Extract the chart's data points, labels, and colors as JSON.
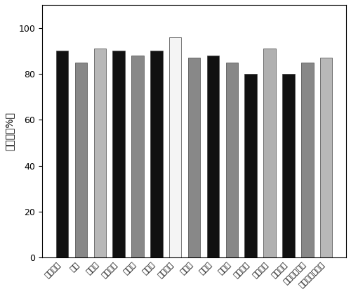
{
  "categories": [
    "卡马西平",
    "雌酮",
    "王基酮",
    "阿司匹林",
    "氯霉素",
    "青霉素",
    "双氯酚酸",
    "泰青生",
    "布洛芬",
    "三氯生",
    "环丙沙星",
    "氨氟沙星",
    "诺氟沙星",
    "磺胺甲基噇座",
    "磺胺二甲基噇座"
  ],
  "values": [
    90,
    85,
    91,
    90,
    88,
    90,
    96,
    87,
    88,
    85,
    80,
    91,
    80,
    85,
    87
  ],
  "colors": [
    "#111111",
    "#888888",
    "#b8b8b8",
    "#111111",
    "#888888",
    "#111111",
    "#f4f4f4",
    "#888888",
    "#111111",
    "#888888",
    "#111111",
    "#b0b0b0",
    "#111111",
    "#888888",
    "#b8b8b8"
  ],
  "ylabel": "去除率（%）",
  "ylim": [
    0,
    110
  ],
  "yticks": [
    0,
    20,
    40,
    60,
    80,
    100
  ],
  "bar_width": 0.65,
  "edge_color": "#444444",
  "edge_width": 0.5,
  "figsize": [
    5.0,
    4.18
  ],
  "dpi": 100
}
